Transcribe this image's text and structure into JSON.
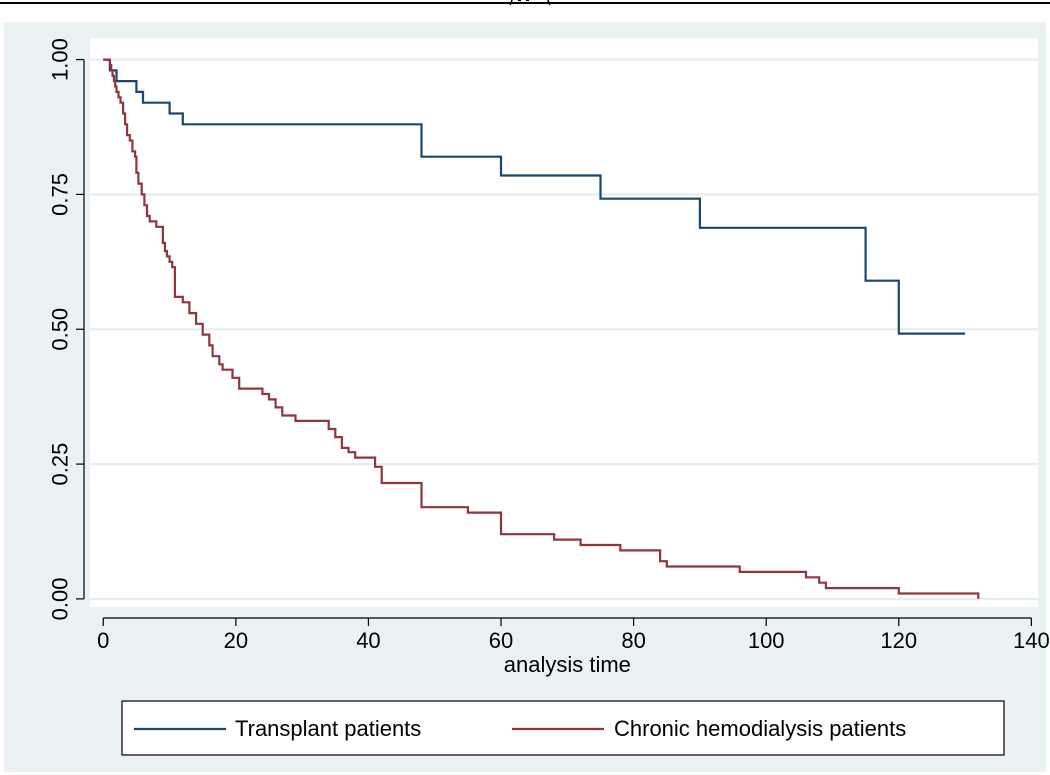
{
  "colors": {
    "background": "#eaf2f3",
    "plot_bg": "#ffffff",
    "grid": "#e3ecee",
    "transplant": "#1a476f",
    "hemodialysis": "#90353b"
  },
  "chart_data": {
    "type": "line",
    "step": true,
    "xlabel": "analysis time",
    "ylabel": "",
    "title": "",
    "xlim": [
      -2,
      141
    ],
    "ylim": [
      -0.015,
      1.04
    ],
    "xticks": [
      0,
      20,
      40,
      60,
      80,
      100,
      120,
      140
    ],
    "yticks": [
      0,
      0.25,
      0.5,
      0.75,
      1
    ],
    "xtick_labels": [
      "0",
      "20",
      "40",
      "60",
      "80",
      "100",
      "120",
      "140"
    ],
    "ytick_labels": [
      "0.00",
      "0.25",
      "0.50",
      "0.75",
      "1.00"
    ],
    "grid": "horizontal",
    "legend_position": "bottom",
    "series": [
      {
        "name": "Transplant patients",
        "color": "#1a476f",
        "points": [
          [
            0,
            1
          ],
          [
            1,
            1
          ],
          [
            1,
            0.98
          ],
          [
            2,
            0.98
          ],
          [
            2,
            0.96
          ],
          [
            5,
            0.96
          ],
          [
            5,
            0.94
          ],
          [
            6,
            0.94
          ],
          [
            6,
            0.92
          ],
          [
            10,
            0.92
          ],
          [
            10,
            0.9
          ],
          [
            12,
            0.9
          ],
          [
            12,
            0.88
          ],
          [
            48,
            0.88
          ],
          [
            48,
            0.82
          ],
          [
            60,
            0.82
          ],
          [
            60,
            0.785
          ],
          [
            75,
            0.785
          ],
          [
            75,
            0.742
          ],
          [
            90,
            0.742
          ],
          [
            90,
            0.688
          ],
          [
            115,
            0.688
          ],
          [
            115,
            0.59
          ],
          [
            120,
            0.59
          ],
          [
            120,
            0.492
          ],
          [
            130,
            0.492
          ]
        ]
      },
      {
        "name": "Chronic hemodialysis patients",
        "color": "#90353b",
        "points": [
          [
            0,
            1
          ],
          [
            1,
            1
          ],
          [
            1,
            0.99
          ],
          [
            1.2,
            0.99
          ],
          [
            1.2,
            0.98
          ],
          [
            1.4,
            0.98
          ],
          [
            1.4,
            0.97
          ],
          [
            1.6,
            0.97
          ],
          [
            1.6,
            0.96
          ],
          [
            1.8,
            0.96
          ],
          [
            1.8,
            0.95
          ],
          [
            2,
            0.95
          ],
          [
            2,
            0.94
          ],
          [
            2.3,
            0.94
          ],
          [
            2.3,
            0.93
          ],
          [
            2.6,
            0.93
          ],
          [
            2.6,
            0.92
          ],
          [
            3,
            0.92
          ],
          [
            3,
            0.9
          ],
          [
            3.3,
            0.9
          ],
          [
            3.3,
            0.88
          ],
          [
            3.6,
            0.88
          ],
          [
            3.6,
            0.86
          ],
          [
            4,
            0.86
          ],
          [
            4,
            0.85
          ],
          [
            4.4,
            0.85
          ],
          [
            4.4,
            0.83
          ],
          [
            4.8,
            0.83
          ],
          [
            4.8,
            0.82
          ],
          [
            5,
            0.82
          ],
          [
            5,
            0.79
          ],
          [
            5.3,
            0.79
          ],
          [
            5.3,
            0.77
          ],
          [
            5.8,
            0.77
          ],
          [
            5.8,
            0.75
          ],
          [
            6.2,
            0.75
          ],
          [
            6.2,
            0.73
          ],
          [
            6.6,
            0.73
          ],
          [
            6.6,
            0.71
          ],
          [
            7,
            0.71
          ],
          [
            7,
            0.7
          ],
          [
            8,
            0.7
          ],
          [
            8,
            0.69
          ],
          [
            9,
            0.69
          ],
          [
            9,
            0.66
          ],
          [
            9.3,
            0.66
          ],
          [
            9.3,
            0.645
          ],
          [
            9.6,
            0.645
          ],
          [
            9.6,
            0.635
          ],
          [
            10,
            0.635
          ],
          [
            10,
            0.625
          ],
          [
            10.4,
            0.625
          ],
          [
            10.4,
            0.615
          ],
          [
            10.8,
            0.615
          ],
          [
            10.8,
            0.56
          ],
          [
            12,
            0.56
          ],
          [
            12,
            0.55
          ],
          [
            13,
            0.55
          ],
          [
            13,
            0.53
          ],
          [
            14,
            0.53
          ],
          [
            14,
            0.51
          ],
          [
            15,
            0.51
          ],
          [
            15,
            0.49
          ],
          [
            16,
            0.49
          ],
          [
            16,
            0.47
          ],
          [
            16.5,
            0.47
          ],
          [
            16.5,
            0.45
          ],
          [
            17.5,
            0.45
          ],
          [
            17.5,
            0.435
          ],
          [
            18,
            0.435
          ],
          [
            18,
            0.425
          ],
          [
            19.5,
            0.425
          ],
          [
            19.5,
            0.41
          ],
          [
            20.5,
            0.41
          ],
          [
            20.5,
            0.39
          ],
          [
            24,
            0.39
          ],
          [
            24,
            0.38
          ],
          [
            25,
            0.38
          ],
          [
            25,
            0.37
          ],
          [
            26,
            0.37
          ],
          [
            26,
            0.355
          ],
          [
            27,
            0.355
          ],
          [
            27,
            0.34
          ],
          [
            29,
            0.34
          ],
          [
            29,
            0.33
          ],
          [
            34,
            0.33
          ],
          [
            34,
            0.315
          ],
          [
            35,
            0.315
          ],
          [
            35,
            0.3
          ],
          [
            36,
            0.3
          ],
          [
            36,
            0.28
          ],
          [
            37,
            0.28
          ],
          [
            37,
            0.272
          ],
          [
            38,
            0.272
          ],
          [
            38,
            0.262
          ],
          [
            41,
            0.262
          ],
          [
            41,
            0.245
          ],
          [
            42,
            0.245
          ],
          [
            42,
            0.215
          ],
          [
            48,
            0.215
          ],
          [
            48,
            0.17
          ],
          [
            55,
            0.17
          ],
          [
            55,
            0.16
          ],
          [
            60,
            0.16
          ],
          [
            60,
            0.12
          ],
          [
            68,
            0.12
          ],
          [
            68,
            0.11
          ],
          [
            72,
            0.11
          ],
          [
            72,
            0.1
          ],
          [
            78,
            0.1
          ],
          [
            78,
            0.09
          ],
          [
            84,
            0.09
          ],
          [
            84,
            0.07
          ],
          [
            85,
            0.07
          ],
          [
            85,
            0.06
          ],
          [
            96,
            0.06
          ],
          [
            96,
            0.05
          ],
          [
            106,
            0.05
          ],
          [
            106,
            0.04
          ],
          [
            108,
            0.04
          ],
          [
            108,
            0.03
          ],
          [
            109,
            0.03
          ],
          [
            109,
            0.02
          ],
          [
            120,
            0.02
          ],
          [
            120,
            0.01
          ],
          [
            132,
            0.01
          ],
          [
            132,
            0
          ]
        ]
      }
    ]
  }
}
